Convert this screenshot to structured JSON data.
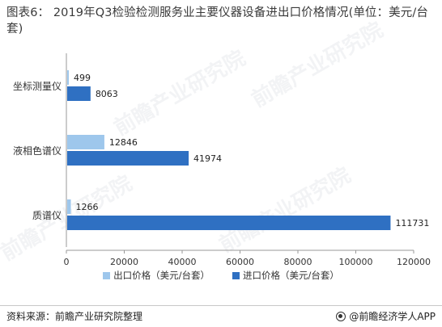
{
  "title": "图表6： 2019年Q3检验检测服务业主要仪器设备进出口价格情况(单位：美元/台套)",
  "footer": {
    "source": "资料来源：前瞻产业研究院整理",
    "brand": "@前瞻经济学人APP",
    "brand_icon": "brand-logo-icon"
  },
  "watermarks": [
    "前瞻产业研究院",
    "前瞻产业研究院",
    "前瞻产业研究院",
    "前瞻产业研究院"
  ],
  "chart_data": {
    "type": "bar",
    "orientation": "horizontal",
    "categories": [
      "坐标测量仪",
      "液相色谱仪",
      "质谱仪"
    ],
    "series": [
      {
        "name": "出口价格（美元/台套）",
        "values": [
          499,
          12846,
          1266
        ],
        "color": "#9ec7ec"
      },
      {
        "name": "进口价格（美元/台套）",
        "values": [
          8063,
          41974,
          111731
        ],
        "color": "#2f70c2"
      }
    ],
    "xlim": [
      0,
      120000
    ],
    "xticks": [
      0,
      20000,
      40000,
      60000,
      80000,
      100000,
      120000
    ],
    "xtick_labels": [
      "0",
      "20000",
      "40000",
      "60000",
      "80000",
      "100000",
      "120000"
    ],
    "grid": false,
    "legend_position": "bottom"
  }
}
